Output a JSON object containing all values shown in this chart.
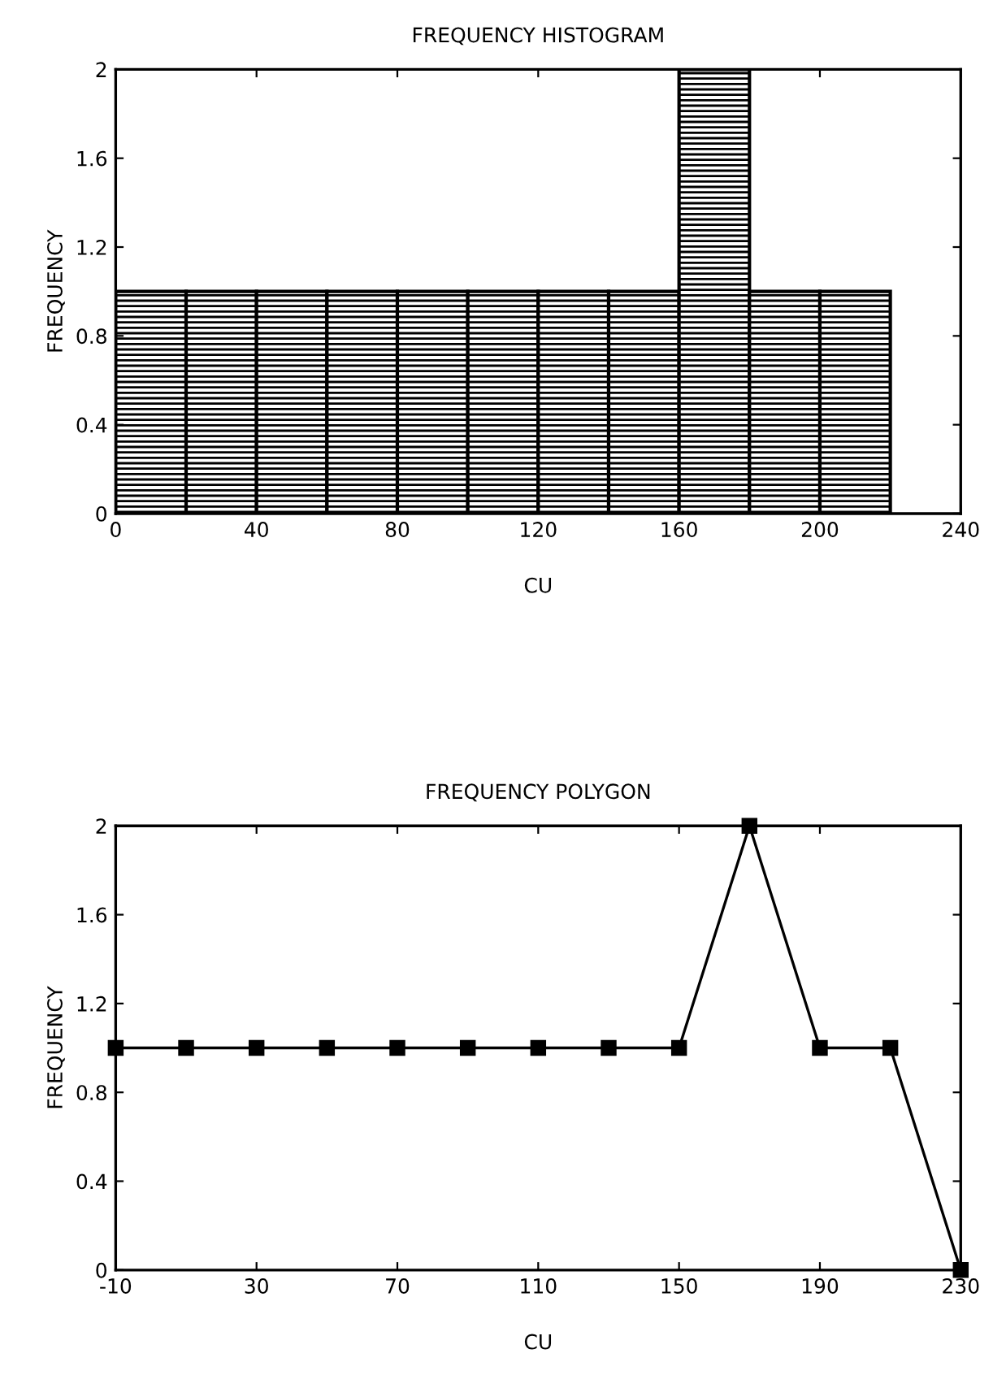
{
  "chart_data": [
    {
      "type": "histogram",
      "title": "FREQUENCY HISTOGRAM",
      "xlabel": "CU",
      "ylabel": "FREQUENCY",
      "bins": [
        0,
        20,
        40,
        60,
        80,
        100,
        120,
        140,
        160,
        180,
        200,
        220
      ],
      "values": [
        1,
        1,
        1,
        1,
        1,
        1,
        1,
        1,
        2,
        1,
        1
      ],
      "color": "#000000",
      "xlim": [
        0,
        240
      ],
      "xticks": [
        0,
        40,
        80,
        120,
        160,
        200,
        240
      ],
      "ylim": [
        0,
        2
      ],
      "yticks": [
        0,
        0.4,
        0.8,
        1.2,
        1.6,
        2
      ],
      "grid": false
    },
    {
      "type": "line",
      "title": "FREQUENCY POLYGON",
      "xlabel": "CU",
      "ylabel": "FREQUENCY",
      "x": [
        -10,
        10,
        30,
        50,
        70,
        90,
        110,
        130,
        150,
        170,
        190,
        210,
        230
      ],
      "values": [
        1,
        1,
        1,
        1,
        1,
        1,
        1,
        1,
        1,
        2,
        1,
        1,
        0
      ],
      "color": "#000000",
      "marker": "square",
      "line_style": "solid",
      "xlim": [
        -10,
        230
      ],
      "xticks": [
        -10,
        30,
        70,
        110,
        150,
        190,
        230
      ],
      "ylim": [
        0,
        2
      ],
      "yticks": [
        0,
        0.4,
        0.8,
        1.2,
        1.6,
        2
      ],
      "grid": false
    }
  ]
}
